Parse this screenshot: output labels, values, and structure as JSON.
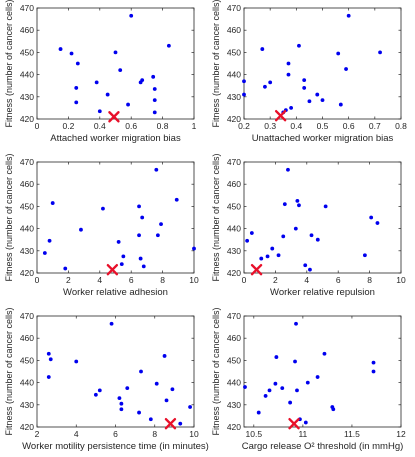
{
  "chart_data": [
    {
      "type": "scatter",
      "xlabel": "Attached worker migration bias",
      "ylabel": "Fitness (number of cancer cells)",
      "xlim": [
        0,
        1
      ],
      "ylim": [
        420,
        470
      ],
      "xticks": [
        0,
        0.2,
        0.4,
        0.6,
        0.8,
        1
      ],
      "xtick_labels": [
        "0",
        "0.2",
        "0.4",
        "0.6",
        "0.8",
        "1"
      ],
      "yticks": [
        420,
        430,
        440,
        450,
        460,
        470
      ],
      "ytick_labels": [
        "420",
        "430",
        "440",
        "450",
        "460",
        "470"
      ],
      "points": [
        [
          0.15,
          451.5
        ],
        [
          0.22,
          449.5
        ],
        [
          0.26,
          445
        ],
        [
          0.25,
          434
        ],
        [
          0.25,
          427.5
        ],
        [
          0.38,
          436.5
        ],
        [
          0.4,
          423.5
        ],
        [
          0.45,
          431
        ],
        [
          0.5,
          450
        ],
        [
          0.53,
          442
        ],
        [
          0.58,
          426.5
        ],
        [
          0.6,
          466.5
        ],
        [
          0.66,
          436.5
        ],
        [
          0.67,
          437.5
        ],
        [
          0.74,
          439
        ],
        [
          0.75,
          433.5
        ],
        [
          0.75,
          428.5
        ],
        [
          0.75,
          423
        ],
        [
          0.84,
          453
        ]
      ],
      "highlight": [
        0.49,
        421
      ]
    },
    {
      "type": "scatter",
      "xlabel": "Unattached worker migration bias",
      "ylabel": "Fitness (number of cancer cells)",
      "xlim": [
        0.2,
        0.8
      ],
      "ylim": [
        420,
        470
      ],
      "xticks": [
        0.2,
        0.3,
        0.4,
        0.5,
        0.6,
        0.7,
        0.8
      ],
      "xtick_labels": [
        "0.2",
        "0.3",
        "0.4",
        "0.5",
        "0.6",
        "0.7",
        "0.8"
      ],
      "yticks": [
        420,
        430,
        440,
        450,
        460,
        470
      ],
      "ytick_labels": [
        "420",
        "430",
        "440",
        "450",
        "460",
        "470"
      ],
      "points": [
        [
          0.2,
          437
        ],
        [
          0.2,
          431
        ],
        [
          0.27,
          451.5
        ],
        [
          0.28,
          434.5
        ],
        [
          0.3,
          436.5
        ],
        [
          0.35,
          423
        ],
        [
          0.36,
          424
        ],
        [
          0.37,
          445
        ],
        [
          0.37,
          440
        ],
        [
          0.38,
          425
        ],
        [
          0.41,
          453
        ],
        [
          0.43,
          437.5
        ],
        [
          0.43,
          434
        ],
        [
          0.45,
          428
        ],
        [
          0.48,
          431
        ],
        [
          0.5,
          428.5
        ],
        [
          0.56,
          449.5
        ],
        [
          0.57,
          426.5
        ],
        [
          0.59,
          442.5
        ],
        [
          0.6,
          466.5
        ],
        [
          0.72,
          450
        ]
      ],
      "highlight": [
        0.34,
        421.5
      ]
    },
    {
      "type": "scatter",
      "xlabel": "Worker relative adhesion",
      "ylabel": "Fitness (number of cancer cells)",
      "xlim": [
        0,
        10
      ],
      "ylim": [
        420,
        470
      ],
      "xticks": [
        0,
        2,
        4,
        6,
        8,
        10
      ],
      "xtick_labels": [
        "0",
        "2",
        "4",
        "6",
        "8",
        "10"
      ],
      "yticks": [
        420,
        430,
        440,
        450,
        460,
        470
      ],
      "ytick_labels": [
        "420",
        "430",
        "440",
        "450",
        "460",
        "470"
      ],
      "points": [
        [
          0.5,
          429
        ],
        [
          0.8,
          434.5
        ],
        [
          1.0,
          451.5
        ],
        [
          1.8,
          422
        ],
        [
          2.8,
          439.5
        ],
        [
          4.2,
          449
        ],
        [
          5.2,
          434
        ],
        [
          5.4,
          424
        ],
        [
          5.5,
          427.5
        ],
        [
          6.5,
          450
        ],
        [
          6.5,
          437
        ],
        [
          6.6,
          426.5
        ],
        [
          6.7,
          445
        ],
        [
          6.8,
          423
        ],
        [
          7.6,
          466.5
        ],
        [
          7.7,
          437
        ],
        [
          7.9,
          442
        ],
        [
          8.9,
          453
        ],
        [
          10,
          431
        ]
      ],
      "highlight": [
        4.8,
        421.5
      ]
    },
    {
      "type": "scatter",
      "xlabel": "Worker relative repulsion",
      "ylabel": "Fitness (number of cancer cells)",
      "xlim": [
        0,
        10
      ],
      "ylim": [
        420,
        470
      ],
      "xticks": [
        0,
        2,
        4,
        6,
        8,
        10
      ],
      "xtick_labels": [
        "0",
        "2",
        "4",
        "6",
        "8",
        "10"
      ],
      "yticks": [
        420,
        430,
        440,
        450,
        460,
        470
      ],
      "ytick_labels": [
        "420",
        "430",
        "440",
        "450",
        "460",
        "470"
      ],
      "points": [
        [
          0.2,
          434.5
        ],
        [
          0.5,
          438
        ],
        [
          1.1,
          426.5
        ],
        [
          1.5,
          427.5
        ],
        [
          1.8,
          431
        ],
        [
          2.2,
          428
        ],
        [
          2.5,
          436.5
        ],
        [
          2.6,
          451
        ],
        [
          2.8,
          466.5
        ],
        [
          3.3,
          440
        ],
        [
          3.4,
          452.5
        ],
        [
          3.5,
          450.5
        ],
        [
          3.9,
          423.5
        ],
        [
          4.2,
          421.5
        ],
        [
          4.3,
          437
        ],
        [
          4.7,
          435
        ],
        [
          5.2,
          450
        ],
        [
          7.7,
          428
        ],
        [
          8.1,
          445
        ],
        [
          8.5,
          442.5
        ]
      ],
      "highlight": [
        0.8,
        421.5
      ]
    },
    {
      "type": "scatter",
      "xlabel": "Worker motility persistence time (in minutes)",
      "ylabel": "Fitness (number of cancer cells)",
      "xlim": [
        2,
        10
      ],
      "ylim": [
        420,
        470
      ],
      "xticks": [
        2,
        4,
        6,
        8,
        10
      ],
      "xtick_labels": [
        "2",
        "4",
        "6",
        "8",
        "10"
      ],
      "yticks": [
        420,
        430,
        440,
        450,
        460,
        470
      ],
      "ytick_labels": [
        "420",
        "430",
        "440",
        "450",
        "460",
        "470"
      ],
      "points": [
        [
          2.6,
          442.5
        ],
        [
          2.6,
          453
        ],
        [
          2.7,
          450.5
        ],
        [
          4.0,
          449.5
        ],
        [
          5.0,
          434.5
        ],
        [
          5.2,
          436.5
        ],
        [
          5.8,
          466.5
        ],
        [
          6.2,
          433
        ],
        [
          6.3,
          430.5
        ],
        [
          6.3,
          428
        ],
        [
          6.6,
          437.5
        ],
        [
          7.2,
          426.5
        ],
        [
          7.3,
          445
        ],
        [
          7.8,
          423.5
        ],
        [
          8.1,
          439.5
        ],
        [
          8.5,
          452
        ],
        [
          8.6,
          432
        ],
        [
          8.9,
          437
        ],
        [
          9.3,
          421.5
        ],
        [
          9.8,
          429
        ]
      ],
      "highlight": [
        8.8,
        421.5
      ]
    },
    {
      "type": "scatter",
      "xlabel": "Cargo release O² threshold (in mmHg)",
      "ylabel": "Fitness (number of cancer cells)",
      "xlim": [
        10.4,
        12
      ],
      "ylim": [
        420,
        470
      ],
      "xticks": [
        10.5,
        11,
        11.5,
        12
      ],
      "xtick_labels": [
        "10.5",
        "11",
        "11.5",
        "12"
      ],
      "yticks": [
        420,
        430,
        440,
        450,
        460,
        470
      ],
      "ytick_labels": [
        "420",
        "430",
        "440",
        "450",
        "460",
        "470"
      ],
      "points": [
        [
          10.41,
          438
        ],
        [
          10.55,
          426.5
        ],
        [
          10.62,
          434
        ],
        [
          10.66,
          436.5
        ],
        [
          10.72,
          439.5
        ],
        [
          10.73,
          451.5
        ],
        [
          10.79,
          437.5
        ],
        [
          10.87,
          431
        ],
        [
          10.93,
          466.5
        ],
        [
          10.92,
          449.5
        ],
        [
          10.94,
          436.5
        ],
        [
          10.97,
          423.5
        ],
        [
          11.03,
          422
        ],
        [
          11.05,
          440
        ],
        [
          11.15,
          442.5
        ],
        [
          11.22,
          453
        ],
        [
          11.3,
          429
        ],
        [
          11.31,
          428
        ],
        [
          11.72,
          445
        ],
        [
          11.72,
          449
        ]
      ],
      "highlight": [
        10.91,
        421.5
      ]
    }
  ]
}
